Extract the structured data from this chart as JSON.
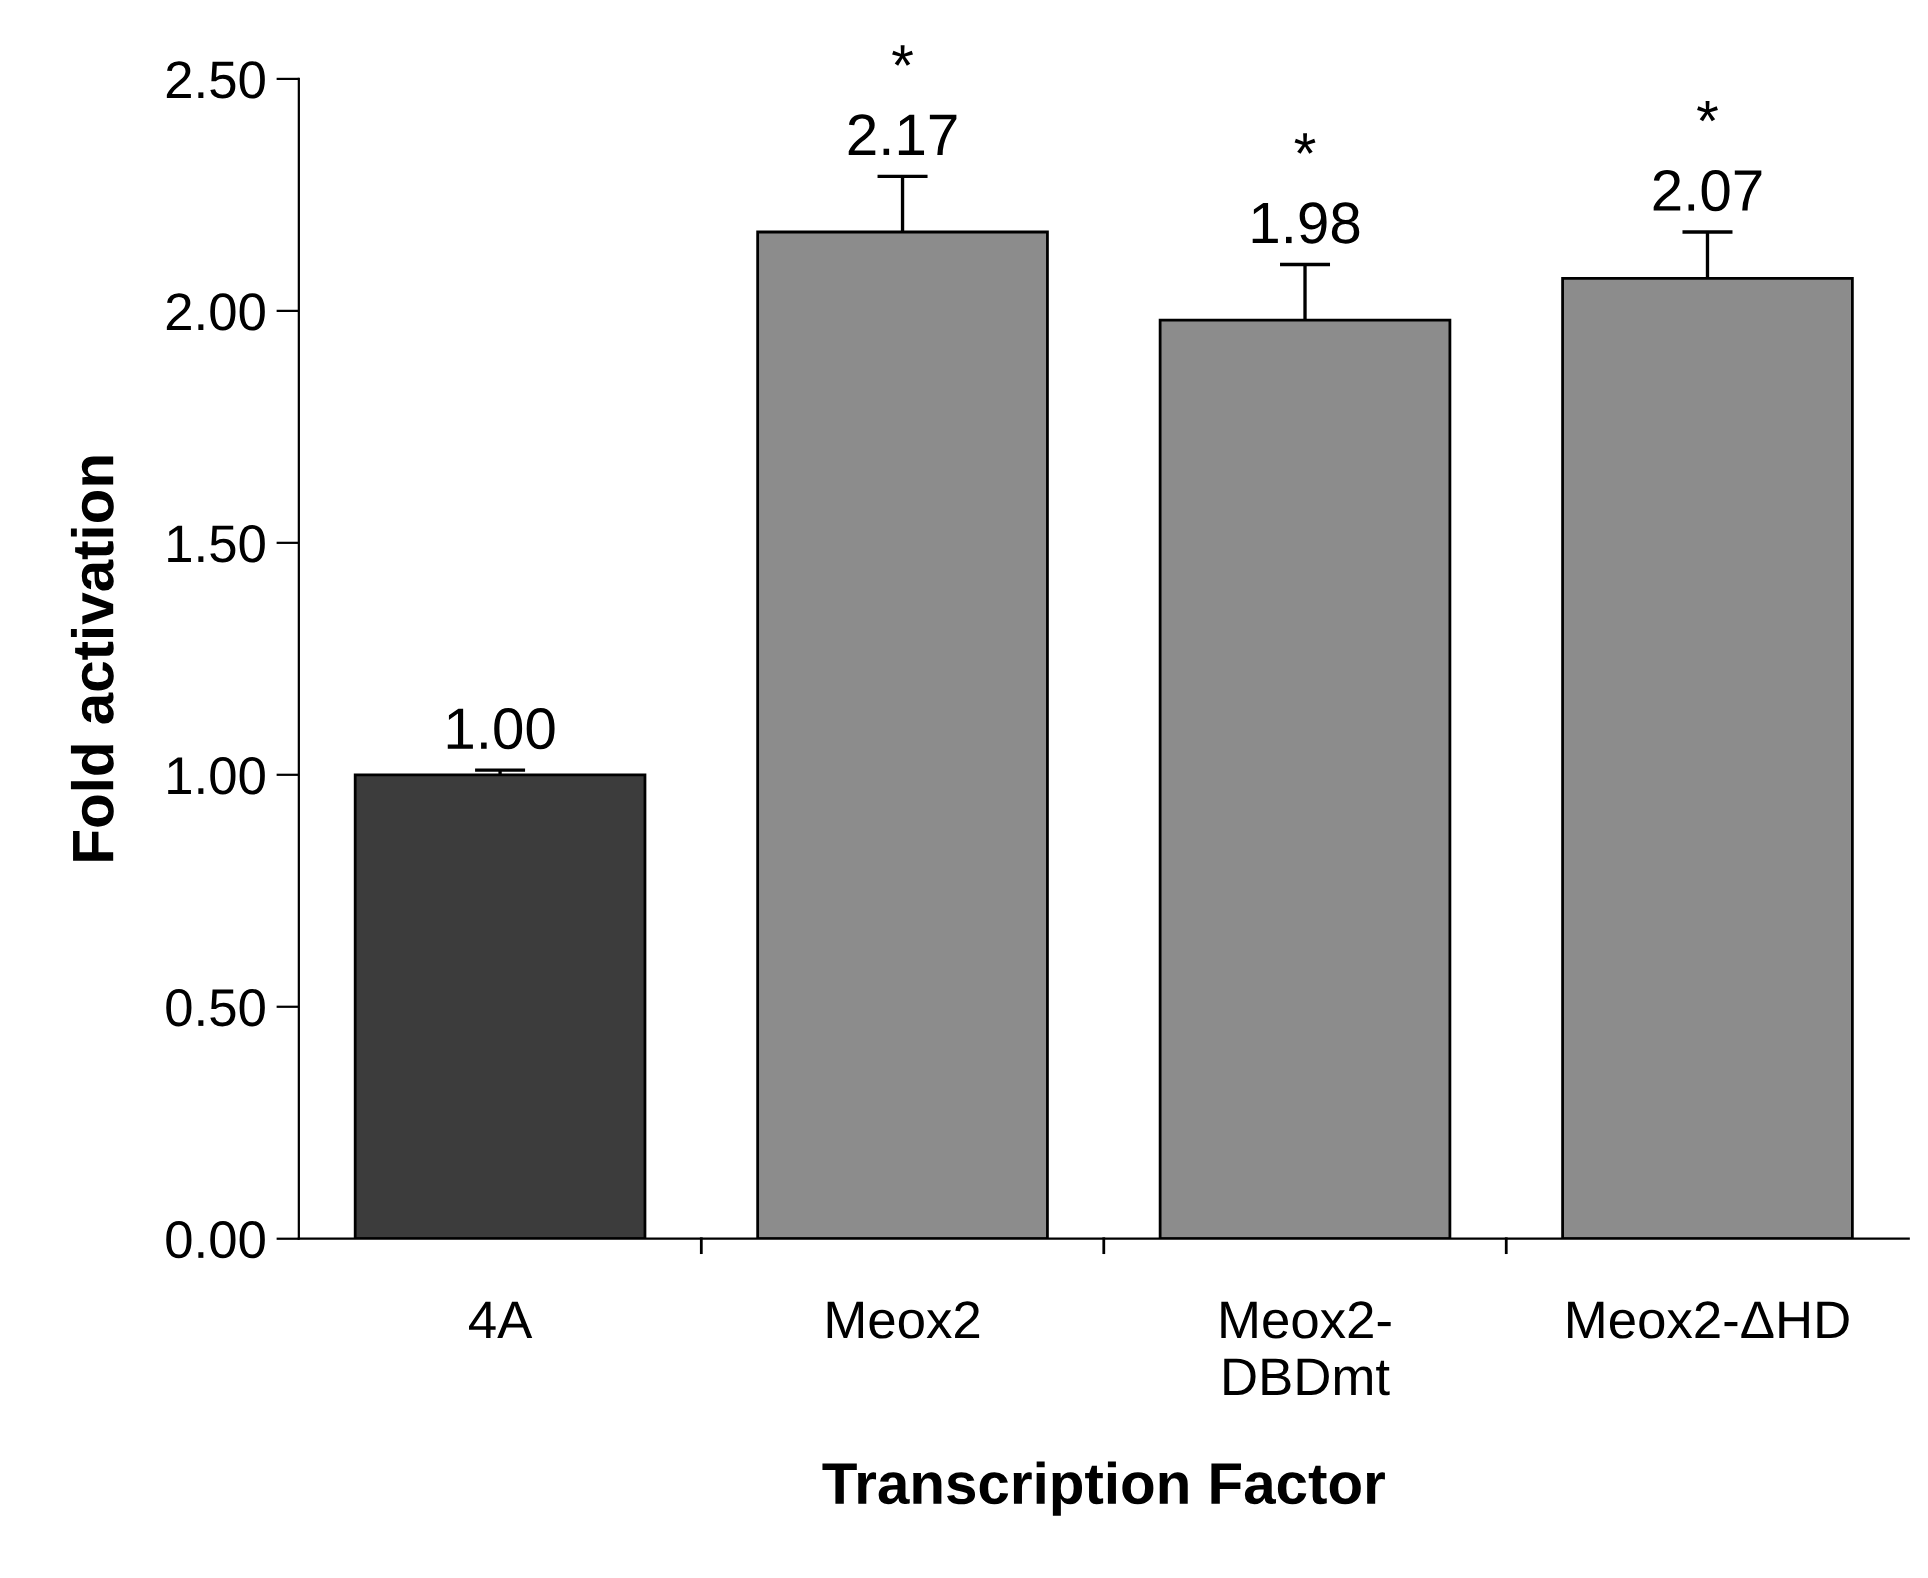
{
  "chart_data": {
    "type": "bar",
    "xlabel": "Transcription Factor",
    "ylabel": "Fold activation",
    "categories": [
      "4A",
      "Meox2",
      "Meox2-\nDBDmt",
      "Meox2-ΔHD"
    ],
    "values": [
      1.0,
      2.17,
      1.98,
      2.07
    ],
    "colors": [
      "#3c3c3c",
      "#8c8c8c",
      "#8c8c8c",
      "#8c8c8c"
    ],
    "errors": [
      0.01,
      0.12,
      0.12,
      0.1
    ],
    "value_labels": [
      "1.00",
      "2.17",
      "1.98",
      "2.07"
    ],
    "annotations": [
      "*",
      "*",
      "*"
    ],
    "ylim": [
      0,
      2.5
    ],
    "yticks": [
      {
        "value": 0,
        "label": "0.00"
      },
      {
        "value": 0.5,
        "label": "0.50"
      },
      {
        "value": 1.0,
        "label": "1.00"
      },
      {
        "value": 1.5,
        "label": "1.50"
      },
      {
        "value": 2.0,
        "label": "2.00"
      },
      {
        "value": 2.5,
        "label": "2.50"
      }
    ],
    "grid": false,
    "legend": false
  }
}
